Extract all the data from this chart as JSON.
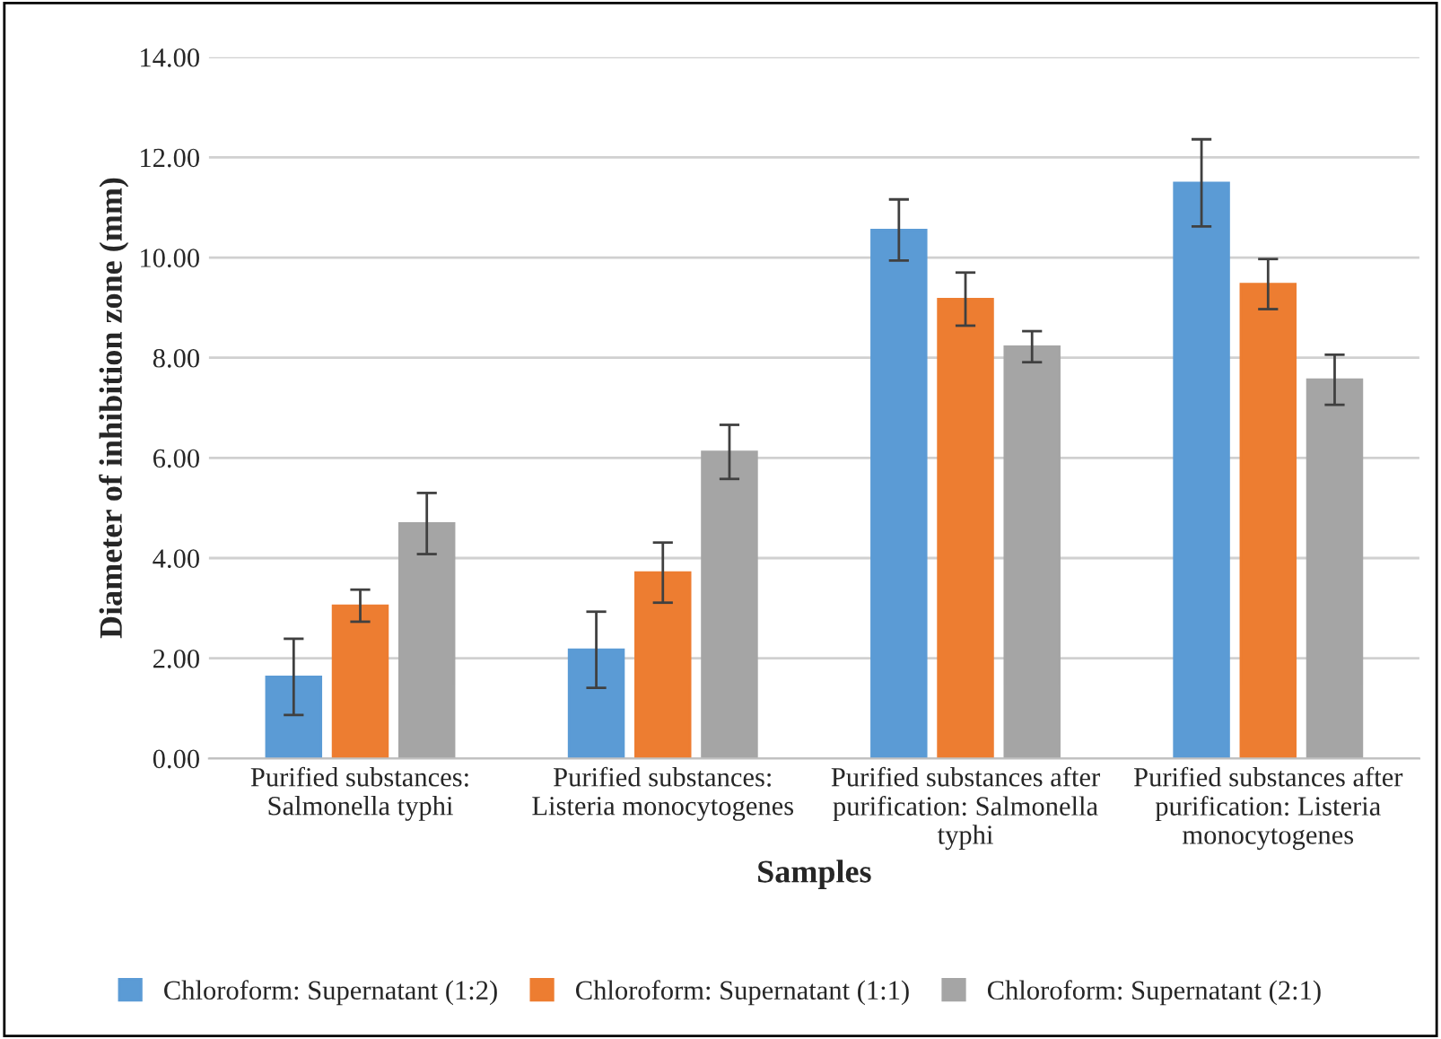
{
  "chart_data": {
    "type": "bar",
    "xlabel": "Samples",
    "ylabel": "Diameter of inhibition zone (mm)",
    "categories": [
      "Purified substances:\nSalmonella typhi",
      "Purified substances:\nListeria monocytogenes",
      "Purified substances after\npurification: Salmonella\ntyphi",
      "Purified substances after\npurification: Listeria\nmonocytogenes"
    ],
    "series": [
      {
        "name": "Chloroform: Supernatant (1:2)",
        "color": "#5b9bd5",
        "values": [
          1.63,
          2.17,
          10.55,
          11.49
        ],
        "errors": [
          0.76,
          0.76,
          0.61,
          0.87
        ]
      },
      {
        "name": "Chloroform: Supernatant (1:1)",
        "color": "#ed7d31",
        "values": [
          3.05,
          3.71,
          9.17,
          9.47
        ],
        "errors": [
          0.32,
          0.6,
          0.53,
          0.5
        ]
      },
      {
        "name": "Chloroform: Supernatant (2:1)",
        "color": "#a5a5a5",
        "values": [
          4.69,
          6.12,
          8.22,
          7.56
        ],
        "errors": [
          0.61,
          0.54,
          0.31,
          0.5
        ]
      }
    ],
    "ylim": [
      0,
      14
    ],
    "yticks": [
      {
        "value": 0,
        "label": "0.00"
      },
      {
        "value": 2,
        "label": "2.00"
      },
      {
        "value": 4,
        "label": "4.00"
      },
      {
        "value": 6,
        "label": "6.00"
      },
      {
        "value": 8,
        "label": "8.00"
      },
      {
        "value": 10,
        "label": "10.00"
      },
      {
        "value": 12,
        "label": "12.00"
      },
      {
        "value": 14,
        "label": "14.00"
      }
    ],
    "grid": "y",
    "legend": "bottom"
  }
}
